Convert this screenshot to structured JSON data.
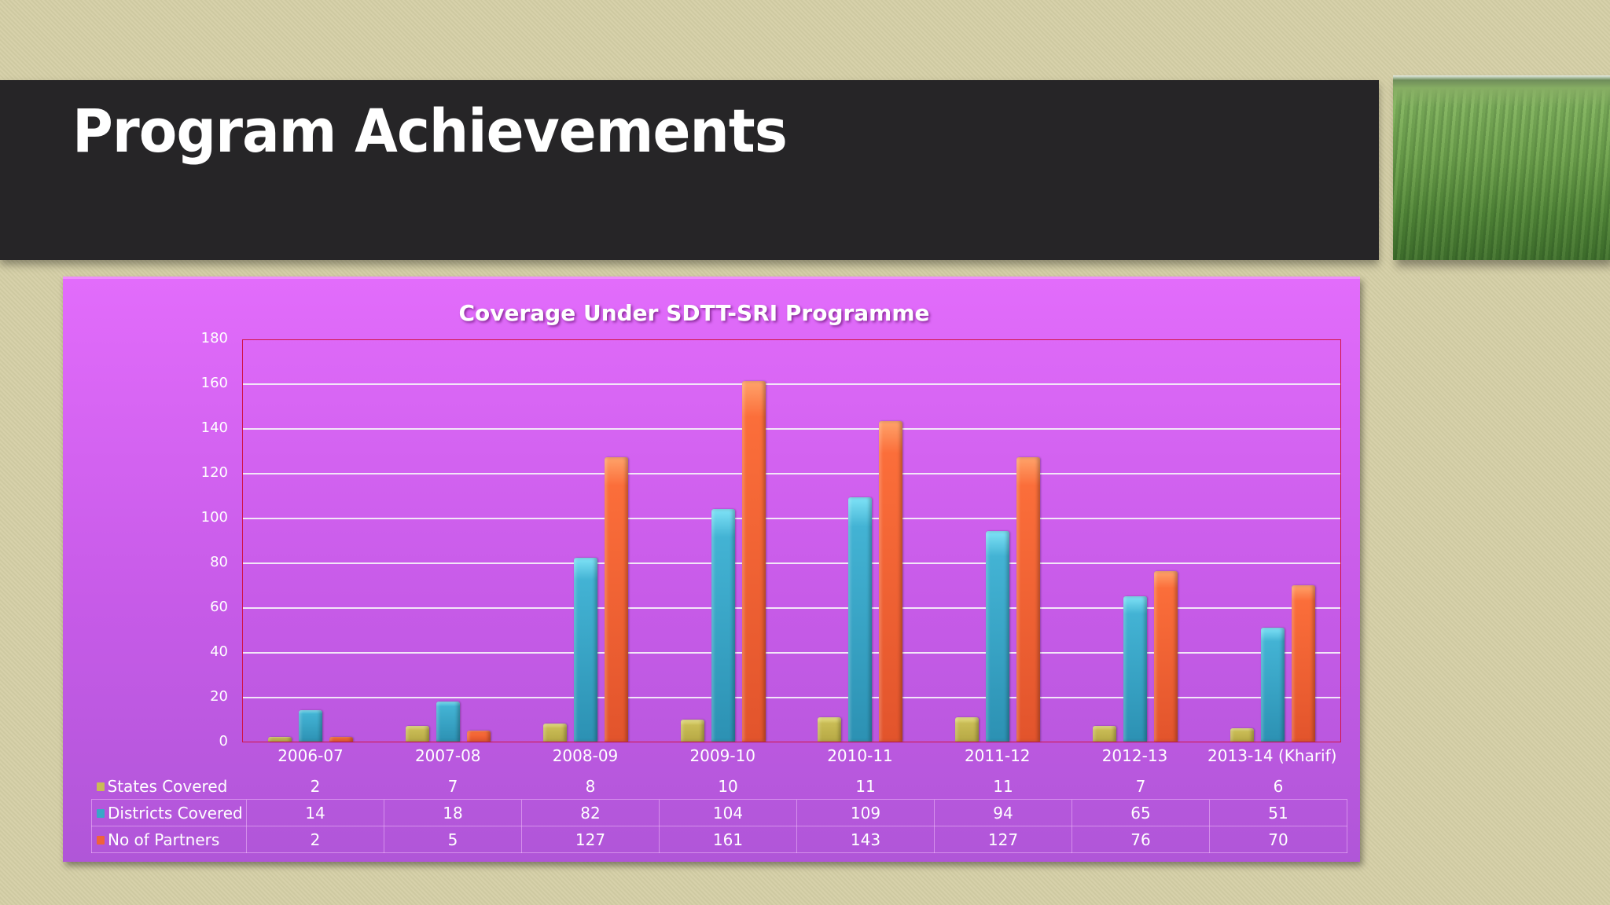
{
  "slide": {
    "title": "Program Achievements",
    "photo": "rice-field-photo"
  },
  "chart_data": {
    "type": "bar",
    "title": "Coverage Under SDTT-SRI Programme",
    "xlabel": "",
    "ylabel": "",
    "ylim": [
      0,
      180
    ],
    "yticks": [
      0,
      20,
      40,
      60,
      80,
      100,
      120,
      140,
      160,
      180
    ],
    "grid": true,
    "legend_position": "data-table",
    "categories": [
      "2006-07",
      "2007-08",
      "2008-09",
      "2009-10",
      "2010-11",
      "2011-12",
      "2012-13",
      "2013-14 (Kharif)"
    ],
    "series": [
      {
        "name": "States Covered",
        "color": "#c9bc55",
        "values": [
          2,
          7,
          8,
          10,
          11,
          11,
          7,
          6
        ]
      },
      {
        "name": "Districts Covered",
        "color": "#3aa6c8",
        "values": [
          14,
          18,
          82,
          104,
          109,
          94,
          65,
          51
        ]
      },
      {
        "name": "No of Partners",
        "color": "#f0623a",
        "values": [
          2,
          5,
          127,
          161,
          143,
          127,
          76,
          70
        ]
      }
    ]
  },
  "colors": {
    "background": "#d5cfa6",
    "title_bar": "#262527",
    "chart_panel_top": "#e26cfb",
    "chart_panel_bottom": "#b056d8",
    "plot_border": "#d11346"
  }
}
